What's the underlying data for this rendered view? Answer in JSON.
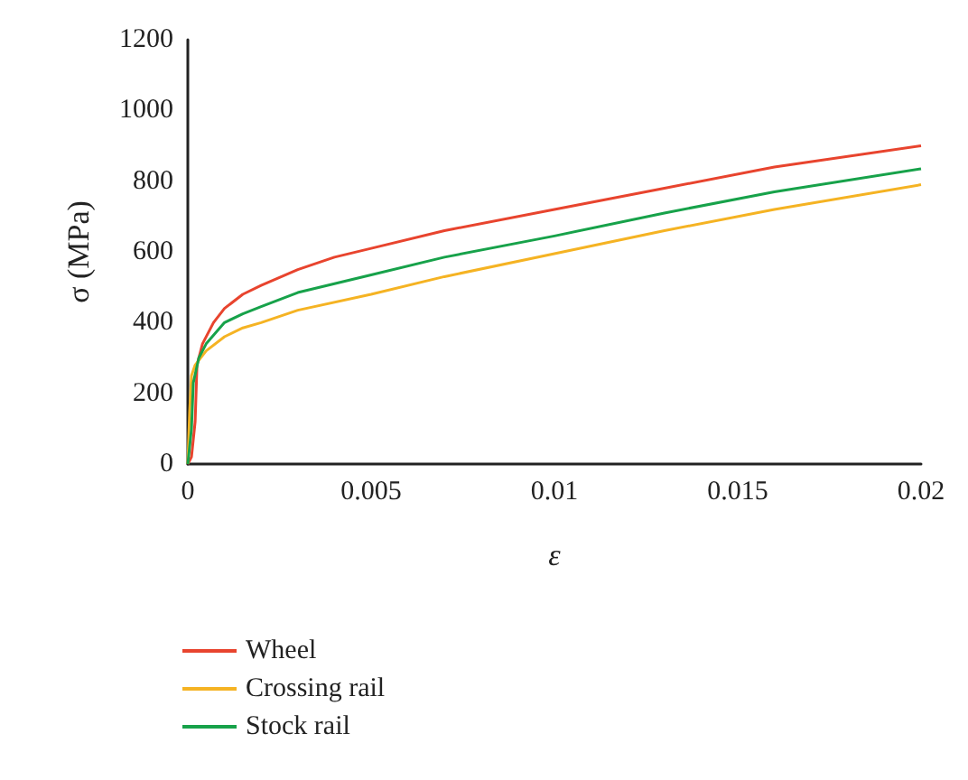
{
  "chart_data": {
    "type": "line",
    "xlabel": "ε",
    "ylabel": "σ (MPa)",
    "xlim": [
      0,
      0.02
    ],
    "xticks": [
      0,
      0.005,
      0.01,
      0.015,
      0.02
    ],
    "ylim": [
      0,
      1200
    ],
    "yticks": [
      0,
      200,
      400,
      600,
      800,
      1000,
      1200
    ],
    "grid": false,
    "legend": "bottom left",
    "marker": "none",
    "line_style": "solid",
    "series": [
      {
        "name": "Wheel",
        "color": "#e8442e",
        "x": [
          0,
          0.0001,
          0.0002,
          0.00025,
          0.0004,
          0.0007,
          0.001,
          0.0015,
          0.002,
          0.003,
          0.004,
          0.005,
          0.007,
          0.01,
          0.013,
          0.016,
          0.02
        ],
        "values": [
          0,
          20,
          120,
          280,
          340,
          400,
          440,
          480,
          505,
          550,
          585,
          610,
          660,
          720,
          780,
          840,
          900
        ]
      },
      {
        "name": "Crossing rail",
        "color": "#f5b323",
        "x": [
          0,
          5e-05,
          0.0001,
          0.0002,
          0.0005,
          0.001,
          0.0015,
          0.002,
          0.003,
          0.005,
          0.007,
          0.01,
          0.013,
          0.016,
          0.02
        ],
        "values": [
          0,
          150,
          250,
          280,
          320,
          360,
          385,
          400,
          435,
          480,
          530,
          595,
          660,
          720,
          790
        ]
      },
      {
        "name": "Stock rail",
        "color": "#17a24a",
        "x": [
          0,
          0.0001,
          0.00015,
          0.0003,
          0.0005,
          0.001,
          0.0015,
          0.002,
          0.003,
          0.005,
          0.007,
          0.01,
          0.013,
          0.016,
          0.02
        ],
        "values": [
          0,
          100,
          230,
          300,
          340,
          400,
          425,
          445,
          485,
          535,
          585,
          645,
          710,
          770,
          835
        ]
      }
    ]
  }
}
